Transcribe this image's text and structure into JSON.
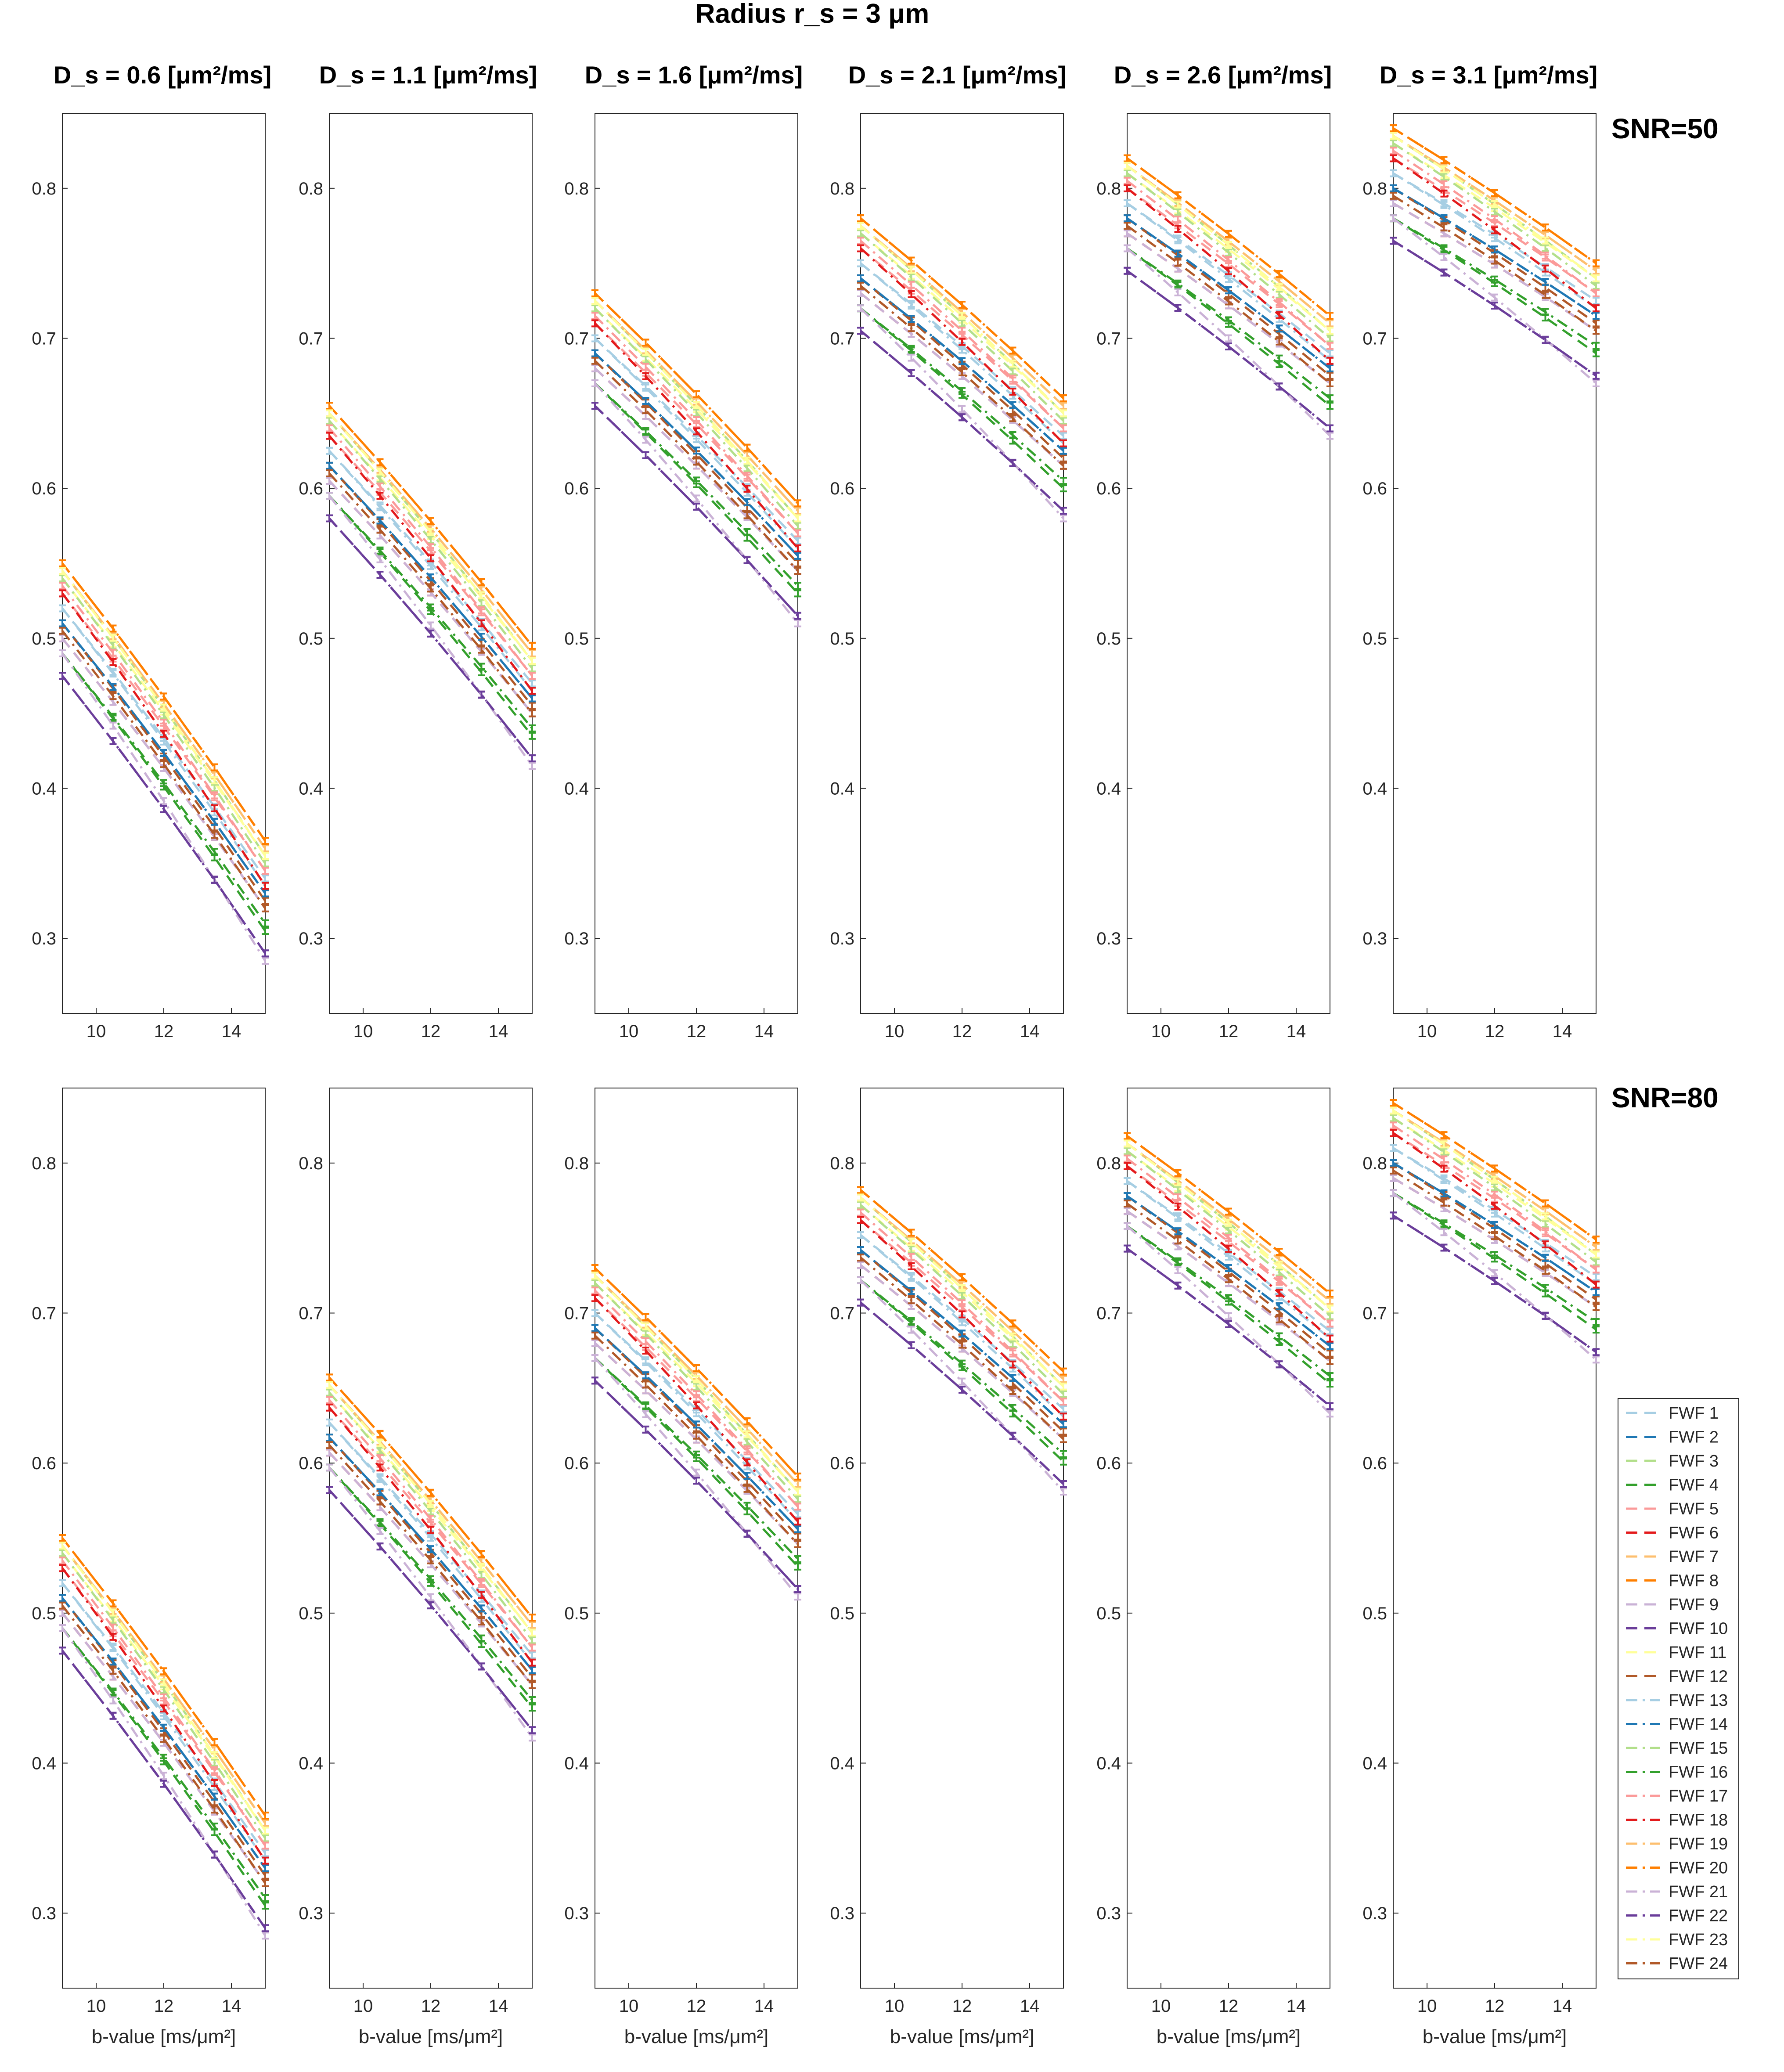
{
  "figure": {
    "main_title": "Radius r_s = 3 μm",
    "column_titles": [
      "D_s = 0.6 [μm²/ms]",
      "D_s = 1.1 [μm²/ms]",
      "D_s = 1.6 [μm²/ms]",
      "D_s = 2.1 [μm²/ms]",
      "D_s = 2.6 [μm²/ms]",
      "D_s = 3.1 [μm²/ms]"
    ],
    "row_labels": [
      "SNR=50",
      "SNR=80"
    ],
    "xlabel": "b-value [ms/μm²]",
    "legend_entries": [
      "FWF 1",
      "FWF 2",
      "FWF 3",
      "FWF 4",
      "FWF 5",
      "FWF 6",
      "FWF 7",
      "FWF 8",
      "FWF 9",
      "FWF 10",
      "FWF 11",
      "FWF 12",
      "FWF 13",
      "FWF 14",
      "FWF 15",
      "FWF 16",
      "FWF 17",
      "FWF 18",
      "FWF 19",
      "FWF 20",
      "FWF 21",
      "FWF 22",
      "FWF 23",
      "FWF 24"
    ]
  },
  "chart_data": {
    "type": "line",
    "title": "Radius r_s = 3 μm",
    "xlabel": "b-value [ms/μm²]",
    "ylabel": "",
    "xlim": [
      9,
      15
    ],
    "ylim": [
      0.25,
      0.85
    ],
    "xticks": [
      10,
      12,
      14
    ],
    "yticks": [
      0.3,
      0.4,
      0.5,
      0.6,
      0.7,
      0.8
    ],
    "x": [
      9,
      10.5,
      12,
      13.5,
      15
    ],
    "grid": false,
    "legend_position": "right of bottom-right panel",
    "series_colors": [
      "#a6cee3",
      "#1f78b4",
      "#b2df8a",
      "#33a02c",
      "#fb9a99",
      "#e31a1c",
      "#fdbf6f",
      "#ff7f00",
      "#cab2d6",
      "#6a3d9a",
      "#ffff99",
      "#b15928",
      "#a6cee3",
      "#1f78b4",
      "#b2df8a",
      "#33a02c",
      "#fb9a99",
      "#e31a1c",
      "#fdbf6f",
      "#ff7f00",
      "#cab2d6",
      "#6a3d9a",
      "#ffff99",
      "#b15928"
    ],
    "series_dash": [
      "dashed",
      "dashed",
      "dashed",
      "dashed",
      "dashed",
      "dashed",
      "dashed",
      "dashed",
      "dashed",
      "dashed",
      "dashed",
      "dashed",
      "dashdot",
      "dashdot",
      "dashdot",
      "dashdot",
      "dashdot",
      "dashdot",
      "dashdot",
      "dashdot",
      "dashdot",
      "dashdot",
      "dashdot",
      "dashdot"
    ],
    "series_names": [
      "FWF 1",
      "FWF 2",
      "FWF 3",
      "FWF 4",
      "FWF 5",
      "FWF 6",
      "FWF 7",
      "FWF 8",
      "FWF 9",
      "FWF 10",
      "FWF 11",
      "FWF 12",
      "FWF 13",
      "FWF 14",
      "FWF 15",
      "FWF 16",
      "FWF 17",
      "FWF 18",
      "FWF 19",
      "FWF 20",
      "FWF 21",
      "FWF 22",
      "FWF 23",
      "FWF 24"
    ],
    "series_start": [
      0.52,
      0.51,
      0.545,
      0.49,
      0.53,
      0.5,
      0.545,
      0.55,
      0.5,
      0.475,
      0.54,
      0.51,
      0.52,
      0.51,
      0.54,
      0.49,
      0.535,
      0.53,
      0.545,
      0.55,
      0.49,
      0.475,
      0.545,
      0.505
    ],
    "series_end": [
      0.34,
      0.33,
      0.355,
      0.305,
      0.345,
      0.32,
      0.36,
      0.365,
      0.32,
      0.29,
      0.355,
      0.325,
      0.335,
      0.33,
      0.35,
      0.31,
      0.345,
      0.335,
      0.36,
      0.365,
      0.285,
      0.29,
      0.355,
      0.32
    ],
    "panels": [
      {
        "row": "SNR=50",
        "column": "D_s = 0.6 [μm²/ms]",
        "start_offset": 0.0,
        "end_offset": 0.0
      },
      {
        "row": "SNR=50",
        "column": "D_s = 1.1 [μm²/ms]",
        "start_offset": 0.105,
        "end_offset": 0.13
      },
      {
        "row": "SNR=50",
        "column": "D_s = 1.6 [μm²/ms]",
        "start_offset": 0.18,
        "end_offset": 0.225
      },
      {
        "row": "SNR=50",
        "column": "D_s = 2.1 [μm²/ms]",
        "start_offset": 0.23,
        "end_offset": 0.295
      },
      {
        "row": "SNR=50",
        "column": "D_s = 2.6 [μm²/ms]",
        "start_offset": 0.27,
        "end_offset": 0.35
      },
      {
        "row": "SNR=50",
        "column": "D_s = 3.1 [μm²/ms]",
        "start_offset": 0.29,
        "end_offset": 0.385
      },
      {
        "row": "SNR=80",
        "column": "D_s = 0.6 [μm²/ms]",
        "start_offset": 0.0,
        "end_offset": 0.0
      },
      {
        "row": "SNR=80",
        "column": "D_s = 1.1 [μm²/ms]",
        "start_offset": 0.107,
        "end_offset": 0.132
      },
      {
        "row": "SNR=80",
        "column": "D_s = 1.6 [μm²/ms]",
        "start_offset": 0.18,
        "end_offset": 0.226
      },
      {
        "row": "SNR=80",
        "column": "D_s = 2.1 [μm²/ms]",
        "start_offset": 0.232,
        "end_offset": 0.296
      },
      {
        "row": "SNR=80",
        "column": "D_s = 2.6 [μm²/ms]",
        "start_offset": 0.268,
        "end_offset": 0.348
      },
      {
        "row": "SNR=80",
        "column": "D_s = 3.1 [μm²/ms]",
        "start_offset": 0.29,
        "end_offset": 0.384
      }
    ]
  }
}
